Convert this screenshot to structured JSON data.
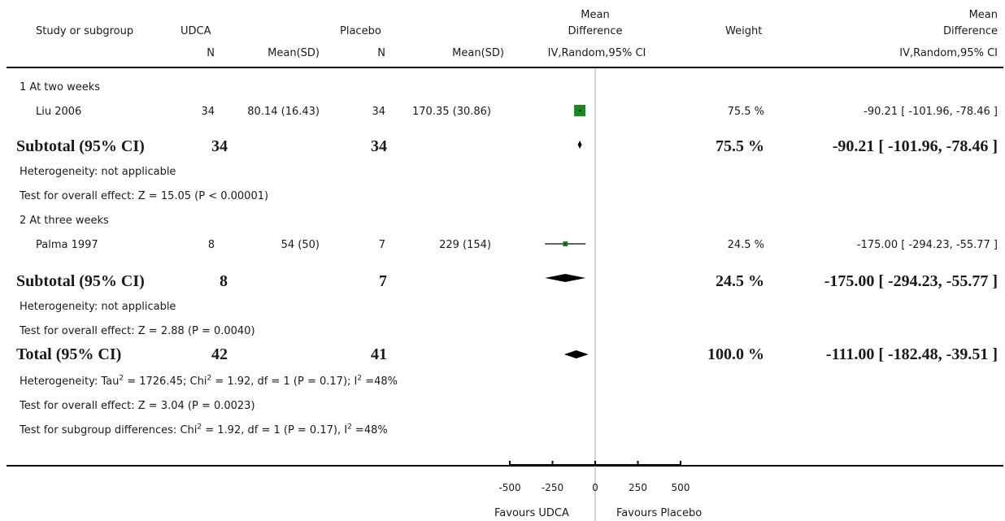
{
  "headers": {
    "study": "Study or subgroup",
    "udca": "UDCA",
    "placebo": "Placebo",
    "md_top": "Mean",
    "md_bottom": "Difference",
    "weight": "Weight",
    "md2_top": "Mean",
    "md2_bottom": "Difference",
    "n1": "N",
    "mean1": "Mean(SD)",
    "n2": "N",
    "mean2": "Mean(SD)",
    "ivr": "IV,Random,95% CI",
    "ivr2": "IV,Random,95% CI"
  },
  "rows": {
    "g1_label": "1 At two weeks",
    "g1_study": "Liu 2006",
    "g1_n1": "34",
    "g1_m1": "80.14 (16.43)",
    "g1_n2": "34",
    "g1_m2": "170.35 (30.86)",
    "g1_w": "75.5 %",
    "g1_ci": "-90.21 [ -101.96, -78.46 ]",
    "sub1_label": "Subtotal (95% CI)",
    "sub1_n1": "34",
    "sub1_n2": "34",
    "sub1_w": "75.5 %",
    "sub1_ci": "-90.21 [ -101.96, -78.46 ]",
    "het1": "Heterogeneity: not applicable",
    "oe1": "Test for overall effect: Z = 15.05 (P < 0.00001)",
    "g2_label": "2 At three weeks",
    "g2_study": "Palma 1997",
    "g2_n1": "8",
    "g2_m1": "54 (50)",
    "g2_n2": "7",
    "g2_m2": "229 (154)",
    "g2_w": "24.5 %",
    "g2_ci": "-175.00 [ -294.23, -55.77 ]",
    "sub2_label": "Subtotal (95% CI)",
    "sub2_n1": "8",
    "sub2_n2": "7",
    "sub2_w": "24.5 %",
    "sub2_ci": "-175.00 [ -294.23, -55.77 ]",
    "het2": "Heterogeneity: not applicable",
    "oe2": "Test for overall effect: Z = 2.88 (P = 0.0040)",
    "tot_label": "Total (95% CI)",
    "tot_n1": "42",
    "tot_n2": "41",
    "tot_w": "100.0 %",
    "tot_ci": "-111.00 [ -182.48, -39.51 ]",
    "het_tot_a": "Heterogeneity: Tau",
    "het_tot_b": " = 1726.45; Chi",
    "het_tot_c": " = 1.92, df = 1 (P = 0.17); I",
    "het_tot_d": " =48%",
    "oe_tot": "Test for overall effect: Z = 3.04 (P = 0.0023)",
    "sg_a": "Test for subgroup differences: Chi",
    "sg_b": " = 1.92, df = 1 (P = 0.17), I",
    "sg_c": " =48%",
    "sup2": "2"
  },
  "axis": {
    "favours_left": "Favours UDCA",
    "favours_right": "Favours Placebo"
  },
  "chart_data": {
    "type": "forest",
    "xlim": [
      -500,
      500
    ],
    "ticks": [
      -500,
      -250,
      0,
      250,
      500
    ],
    "tick_labels": [
      "-500",
      "-250",
      "0",
      "250",
      "500"
    ],
    "studies": [
      {
        "name": "Liu 2006",
        "md": -90.21,
        "lo": -101.96,
        "hi": -78.46,
        "weight": 75.5
      },
      {
        "name": "Palma 1997",
        "md": -175.0,
        "lo": -294.23,
        "hi": -55.77,
        "weight": 24.5
      }
    ],
    "pooled": [
      {
        "name": "Subtotal (95% CI)",
        "md": -90.21,
        "lo": -101.96,
        "hi": -78.46
      },
      {
        "name": "Subtotal (95% CI)",
        "md": -175.0,
        "lo": -294.23,
        "hi": -55.77
      },
      {
        "name": "Total (95% CI)",
        "md": -111.0,
        "lo": -182.48,
        "hi": -39.51
      }
    ],
    "colors": {
      "marker": "#1a8a1a",
      "diamond": "#000000",
      "line": "#000000"
    }
  }
}
